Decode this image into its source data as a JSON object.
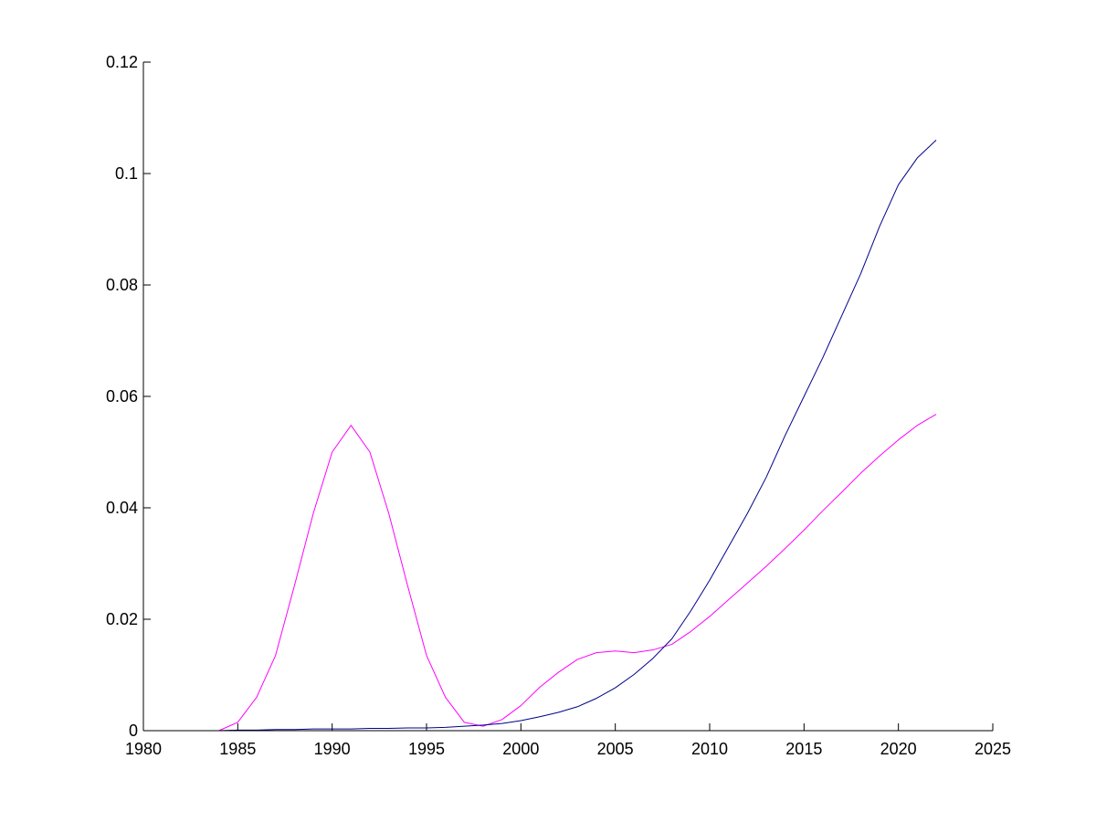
{
  "chart_data": {
    "type": "line",
    "title": "",
    "xlabel": "",
    "ylabel": "",
    "xlim": [
      1980,
      2025
    ],
    "ylim": [
      0,
      0.12
    ],
    "x_ticks": [
      "1980",
      "1985",
      "1990",
      "1995",
      "2000",
      "2005",
      "2010",
      "2015",
      "2020",
      "2025"
    ],
    "y_ticks": [
      "0",
      "0.02",
      "0.04",
      "0.06",
      "0.08",
      "0.1",
      "0.12"
    ],
    "grid": false,
    "legend": "none",
    "series": [
      {
        "color": "#ff00ff",
        "x": [
          1980,
          1981,
          1982,
          1983,
          1984,
          1985,
          1986,
          1987,
          1988,
          1989,
          1990,
          1991,
          1992,
          1993,
          1994,
          1995,
          1996,
          1997,
          1998,
          1999,
          2000,
          2001,
          2002,
          2003,
          2004,
          2005,
          2006,
          2007,
          2008,
          2009,
          2010,
          2011,
          2012,
          2013,
          2014,
          2015,
          2016,
          2017,
          2018,
          2019,
          2020,
          2021,
          2022
        ],
        "y": [
          0,
          0,
          0,
          0,
          0,
          0.0015,
          0.006,
          0.0135,
          0.026,
          0.039,
          0.05,
          0.0548,
          0.05,
          0.039,
          0.026,
          0.0135,
          0.006,
          0.0015,
          0.0008,
          0.002,
          0.0045,
          0.0078,
          0.0105,
          0.0128,
          0.014,
          0.0143,
          0.014,
          0.0145,
          0.0155,
          0.0178,
          0.0205,
          0.0235,
          0.0265,
          0.0295,
          0.0327,
          0.036,
          0.0395,
          0.0428,
          0.0462,
          0.0493,
          0.0522,
          0.0548,
          0.0568
        ]
      },
      {
        "color": "#00008b",
        "x": [
          1980,
          1981,
          1982,
          1983,
          1984,
          1985,
          1986,
          1987,
          1988,
          1989,
          1990,
          1991,
          1992,
          1993,
          1994,
          1995,
          1996,
          1997,
          1998,
          1999,
          2000,
          2001,
          2002,
          2003,
          2004,
          2005,
          2006,
          2007,
          2008,
          2009,
          2010,
          2011,
          2012,
          2013,
          2014,
          2015,
          2016,
          2017,
          2018,
          2019,
          2020,
          2021,
          2022
        ],
        "y": [
          0,
          0,
          0,
          0,
          0,
          0.0001,
          0.0001,
          0.0002,
          0.0002,
          0.0003,
          0.0003,
          0.0003,
          0.0004,
          0.0004,
          0.0005,
          0.0005,
          0.0006,
          0.0008,
          0.001,
          0.0013,
          0.0018,
          0.0025,
          0.0033,
          0.0043,
          0.0058,
          0.0077,
          0.0101,
          0.013,
          0.0165,
          0.0215,
          0.027,
          0.033,
          0.039,
          0.0455,
          0.053,
          0.06,
          0.067,
          0.0745,
          0.082,
          0.0905,
          0.098,
          0.1028,
          0.106
        ]
      }
    ]
  }
}
